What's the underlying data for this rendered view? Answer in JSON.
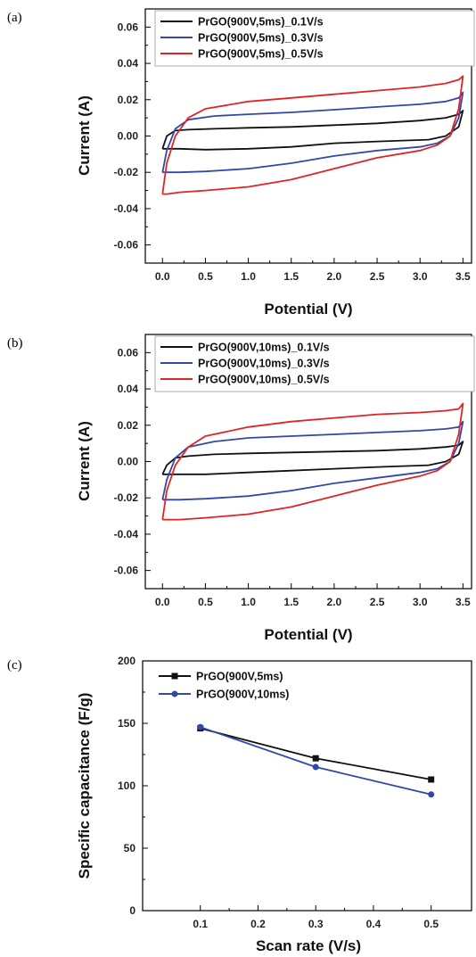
{
  "chart_data": [
    {
      "type": "line",
      "panel_label": "(a)",
      "xlabel": "Potential (V)",
      "ylabel": "Current (A)",
      "xlim": [
        -0.2,
        3.6
      ],
      "ylim": [
        -0.07,
        0.07
      ],
      "x_ticks": [
        "0.0",
        "0.5",
        "1.0",
        "1.5",
        "2.0",
        "2.5",
        "3.0",
        "3.5"
      ],
      "x_tick_values": [
        0,
        0.5,
        1.0,
        1.5,
        2.0,
        2.5,
        3.0,
        3.5
      ],
      "y_ticks": [
        "0.06",
        "0.04",
        "0.02",
        "0.00",
        "-0.02",
        "-0.04",
        "-0.06"
      ],
      "y_tick_values": [
        0.06,
        0.04,
        0.02,
        0.0,
        -0.02,
        -0.04,
        -0.06
      ],
      "legend_position": "top-left",
      "series": [
        {
          "name": "PrGO(900V,5ms)_0.1V/s",
          "color": "#111111",
          "x": [
            0.0,
            0.05,
            0.15,
            0.3,
            0.6,
            1.0,
            1.5,
            2.0,
            2.5,
            3.0,
            3.3,
            3.45,
            3.5,
            3.45,
            3.3,
            3.1,
            2.5,
            2.0,
            1.5,
            1.0,
            0.5,
            0.2,
            0.05,
            0.0
          ],
          "y": [
            -0.007,
            0.0,
            0.003,
            0.0035,
            0.004,
            0.0045,
            0.005,
            0.006,
            0.007,
            0.0085,
            0.01,
            0.012,
            0.014,
            0.005,
            0.0,
            -0.002,
            -0.003,
            -0.004,
            -0.006,
            -0.007,
            -0.0075,
            -0.007,
            -0.007,
            -0.007
          ]
        },
        {
          "name": "PrGO(900V,5ms)_0.3V/s",
          "color": "#3347a8",
          "x": [
            0.0,
            0.05,
            0.15,
            0.3,
            0.6,
            1.0,
            1.5,
            2.0,
            2.5,
            3.0,
            3.3,
            3.45,
            3.5,
            3.45,
            3.35,
            3.2,
            3.0,
            2.5,
            2.0,
            1.5,
            1.0,
            0.5,
            0.2,
            0.05,
            0.0
          ],
          "y": [
            -0.02,
            -0.008,
            0.004,
            0.009,
            0.011,
            0.012,
            0.013,
            0.0145,
            0.016,
            0.0175,
            0.019,
            0.021,
            0.024,
            0.01,
            0.0,
            -0.004,
            -0.006,
            -0.008,
            -0.011,
            -0.015,
            -0.018,
            -0.0195,
            -0.02,
            -0.02,
            -0.02
          ]
        },
        {
          "name": "PrGO(900V,5ms)_0.5V/s",
          "color": "#e02424",
          "x": [
            0.0,
            0.05,
            0.15,
            0.3,
            0.5,
            1.0,
            1.5,
            2.0,
            2.5,
            3.0,
            3.3,
            3.45,
            3.5,
            3.45,
            3.35,
            3.2,
            3.0,
            2.5,
            2.0,
            1.5,
            1.0,
            0.5,
            0.2,
            0.05,
            0.0
          ],
          "y": [
            -0.032,
            -0.015,
            0.0,
            0.01,
            0.015,
            0.019,
            0.021,
            0.023,
            0.025,
            0.027,
            0.029,
            0.031,
            0.033,
            0.015,
            0.0,
            -0.005,
            -0.008,
            -0.012,
            -0.018,
            -0.024,
            -0.028,
            -0.03,
            -0.031,
            -0.032,
            -0.032
          ]
        }
      ]
    },
    {
      "type": "line",
      "panel_label": "(b)",
      "xlabel": "Potential (V)",
      "ylabel": "Current (A)",
      "xlim": [
        -0.2,
        3.6
      ],
      "ylim": [
        -0.07,
        0.07
      ],
      "x_ticks": [
        "0.0",
        "0.5",
        "1.0",
        "1.5",
        "2.0",
        "2.5",
        "3.0",
        "3.5"
      ],
      "x_tick_values": [
        0,
        0.5,
        1.0,
        1.5,
        2.0,
        2.5,
        3.0,
        3.5
      ],
      "y_ticks": [
        "0.06",
        "0.04",
        "0.02",
        "0.00",
        "-0.02",
        "-0.04",
        "-0.06"
      ],
      "y_tick_values": [
        0.06,
        0.04,
        0.02,
        0.0,
        -0.02,
        -0.04,
        -0.06
      ],
      "legend_position": "top-left",
      "series": [
        {
          "name": "PrGO(900V,10ms)_0.1V/s",
          "color": "#111111",
          "x": [
            0.0,
            0.05,
            0.15,
            0.3,
            0.6,
            1.0,
            1.5,
            2.0,
            2.5,
            3.0,
            3.3,
            3.45,
            3.5,
            3.45,
            3.3,
            3.1,
            2.5,
            2.0,
            1.5,
            1.0,
            0.5,
            0.2,
            0.05,
            0.0
          ],
          "y": [
            -0.007,
            -0.002,
            0.002,
            0.003,
            0.004,
            0.0045,
            0.005,
            0.0055,
            0.006,
            0.007,
            0.008,
            0.009,
            0.011,
            0.004,
            0.0,
            -0.002,
            -0.003,
            -0.004,
            -0.005,
            -0.006,
            -0.007,
            -0.007,
            -0.007,
            -0.007
          ]
        },
        {
          "name": "PrGO(900V,10ms)_0.3V/s",
          "color": "#3347a8",
          "x": [
            0.0,
            0.05,
            0.15,
            0.3,
            0.6,
            1.0,
            1.5,
            2.0,
            2.5,
            3.0,
            3.3,
            3.45,
            3.5,
            3.45,
            3.35,
            3.2,
            3.0,
            2.5,
            2.0,
            1.5,
            1.0,
            0.5,
            0.2,
            0.05,
            0.0
          ],
          "y": [
            -0.021,
            -0.01,
            0.002,
            0.008,
            0.011,
            0.013,
            0.014,
            0.015,
            0.016,
            0.017,
            0.018,
            0.019,
            0.022,
            0.01,
            0.0,
            -0.004,
            -0.006,
            -0.009,
            -0.012,
            -0.016,
            -0.019,
            -0.0205,
            -0.021,
            -0.021,
            -0.021
          ]
        },
        {
          "name": "PrGO(900V,10ms)_0.5V/s",
          "color": "#e02424",
          "x": [
            0.0,
            0.05,
            0.15,
            0.3,
            0.5,
            1.0,
            1.5,
            2.0,
            2.5,
            3.0,
            3.3,
            3.45,
            3.5,
            3.45,
            3.35,
            3.2,
            3.0,
            2.5,
            2.0,
            1.5,
            1.0,
            0.5,
            0.2,
            0.05,
            0.0
          ],
          "y": [
            -0.032,
            -0.016,
            -0.002,
            0.008,
            0.014,
            0.019,
            0.022,
            0.024,
            0.026,
            0.027,
            0.028,
            0.029,
            0.032,
            0.015,
            0.0,
            -0.005,
            -0.008,
            -0.013,
            -0.019,
            -0.025,
            -0.029,
            -0.031,
            -0.032,
            -0.032,
            -0.032
          ]
        }
      ]
    },
    {
      "type": "line",
      "panel_label": "(c)",
      "xlabel": "Scan rate (V/s)",
      "ylabel": "Specific capacitance (F/g)",
      "xlim": [
        0.0,
        0.57
      ],
      "ylim": [
        0,
        200
      ],
      "x_ticks": [
        "0.1",
        "0.2",
        "0.3",
        "0.4",
        "0.5"
      ],
      "x_tick_values": [
        0.1,
        0.2,
        0.3,
        0.4,
        0.5
      ],
      "y_ticks": [
        "200",
        "150",
        "100",
        "50",
        "0"
      ],
      "y_tick_values": [
        200,
        150,
        100,
        50,
        0
      ],
      "legend_position": "top-left",
      "series": [
        {
          "name": "PrGO(900V,5ms)",
          "color": "#111111",
          "marker": "square",
          "x": [
            0.1,
            0.3,
            0.5
          ],
          "y": [
            146,
            122,
            105
          ]
        },
        {
          "name": "PrGO(900V,10ms)",
          "color": "#3347a8",
          "marker": "circle",
          "x": [
            0.1,
            0.3,
            0.5
          ],
          "y": [
            147,
            115,
            93
          ]
        }
      ]
    }
  ]
}
